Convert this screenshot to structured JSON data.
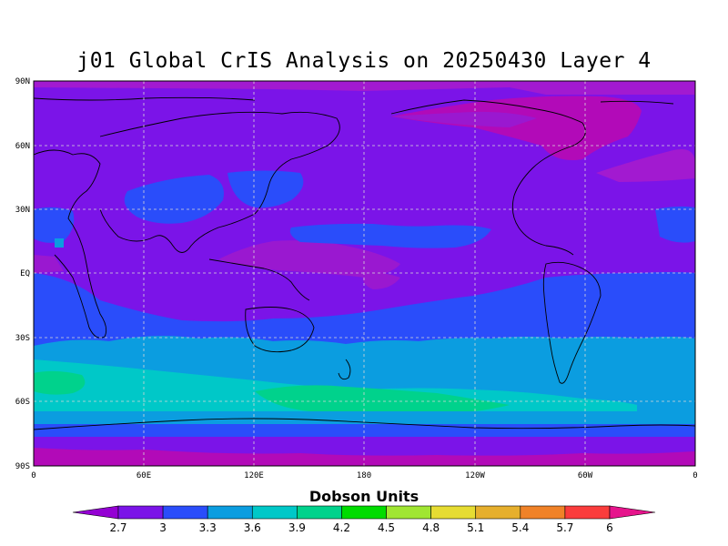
{
  "title": "j01 Global CrIS Analysis on 20250430 Layer 4",
  "lat_labels": [
    "90N",
    "60N",
    "30N",
    "EQ",
    "30S",
    "60S",
    "90S"
  ],
  "lon_labels": [
    "0",
    "60E",
    "120E",
    "180",
    "120W",
    "60W",
    "0"
  ],
  "colorbar": {
    "title": "Dobson Units",
    "tick_labels": [
      "2.7",
      "3",
      "3.3",
      "3.6",
      "3.9",
      "4.2",
      "4.5",
      "4.8",
      "5.1",
      "5.4",
      "5.7",
      "6"
    ],
    "colors": [
      "#9400d3",
      "#7b14e8",
      "#2a4dfa",
      "#0b9de0",
      "#00c8c8",
      "#00d28c",
      "#00dc00",
      "#a0e632",
      "#e6dc32",
      "#e6af2d",
      "#f08228",
      "#fa3c3c",
      "#f00082",
      "#e6148c"
    ]
  },
  "colors": {
    "background_field": "#7b14e8",
    "high_lat_north": "#b20ab8",
    "south_band": "#0b9de0",
    "south_max": "#00c8c8",
    "coast": "#000000",
    "grid": "#d8d8d8"
  }
}
